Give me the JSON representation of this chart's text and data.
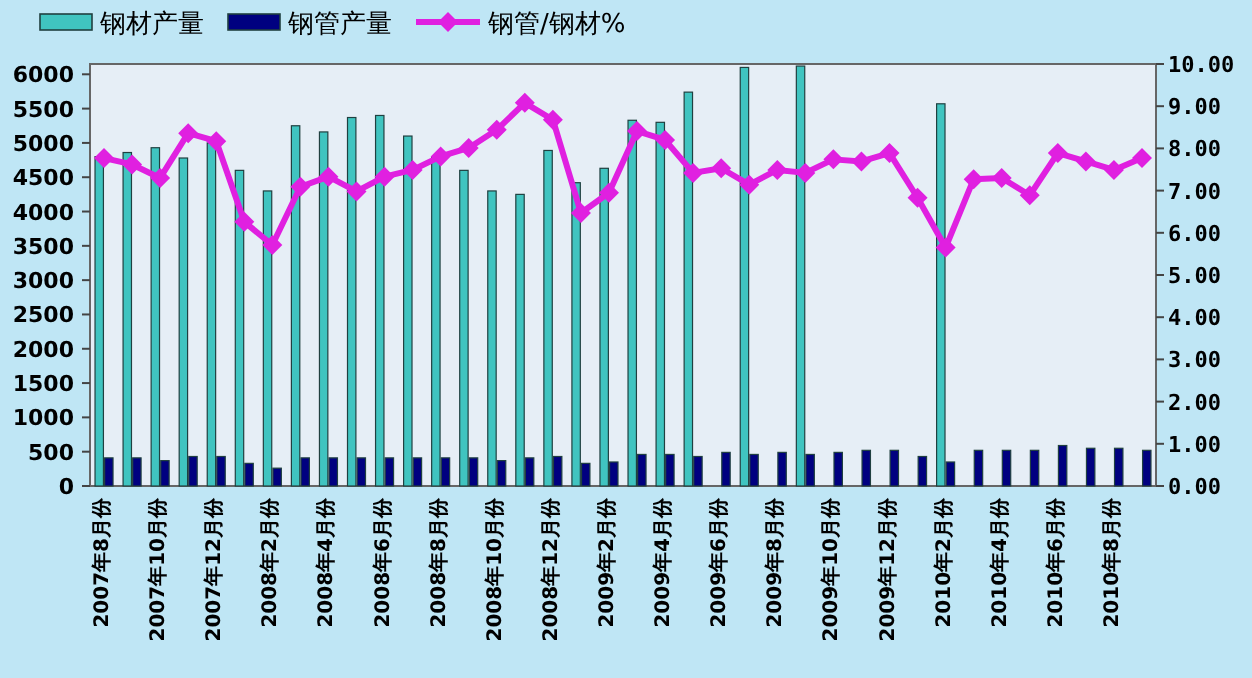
{
  "chart_data": {
    "type": "bar",
    "categories": [
      "2007年8月份",
      null,
      "2007年10月份",
      null,
      "2007年12月份",
      null,
      "2008年2月份",
      null,
      "2008年4月份",
      null,
      "2008年6月份",
      null,
      "2008年8月份",
      null,
      "2008年10月份",
      null,
      "2008年12月份",
      null,
      "2009年2月份",
      null,
      "2009年4月份",
      null,
      "2009年6月份",
      null,
      "2009年8月份",
      null,
      "2009年10月份",
      null,
      "2009年12月份",
      null,
      "2010年2月份",
      null,
      "2010年4月份",
      null,
      "2010年6月份",
      null,
      "2010年8月份",
      null
    ],
    "series": [
      {
        "name": "钢材产量",
        "color": "#40c4c0",
        "values": [
          4800,
          4860,
          4930,
          4780,
          5000,
          4600,
          4300,
          5250,
          5160,
          5370,
          5400,
          5100,
          4800,
          4600,
          4300,
          4250,
          4890,
          4420,
          4630,
          5330,
          5300,
          5740,
          null,
          6100,
          null,
          6120,
          null,
          null,
          null,
          null,
          5570,
          null,
          null,
          null,
          null,
          null,
          null,
          null
        ]
      },
      {
        "name": "钢管产量",
        "color": "#000080",
        "values": [
          410,
          410,
          370,
          430,
          430,
          330,
          260,
          410,
          410,
          410,
          410,
          410,
          410,
          410,
          370,
          410,
          430,
          330,
          350,
          460,
          460,
          430,
          490,
          460,
          490,
          460,
          490,
          520,
          520,
          430,
          350,
          520,
          520,
          520,
          590,
          550,
          550,
          520
        ]
      },
      {
        "name": "钢管/钢材%",
        "type": "line",
        "axis": "y2",
        "color": "#e020e0",
        "marker": "diamond",
        "values": [
          7.77,
          7.62,
          7.3,
          8.36,
          8.17,
          6.26,
          5.71,
          7.09,
          7.33,
          6.98,
          7.33,
          7.49,
          7.81,
          8.01,
          8.44,
          9.08,
          8.68,
          6.47,
          6.95,
          8.41,
          8.2,
          7.42,
          7.53,
          7.14,
          7.49,
          7.42,
          7.74,
          7.69,
          7.89,
          6.83,
          5.65,
          7.27,
          7.3,
          6.89,
          7.89,
          7.69,
          7.49,
          7.77
        ]
      }
    ],
    "ylim": [
      0,
      6150
    ],
    "yticks": [
      0,
      500,
      1000,
      1500,
      2000,
      2500,
      3000,
      3500,
      4000,
      4500,
      5000,
      5500,
      6000
    ],
    "y2lim": [
      0,
      10
    ],
    "y2ticks": [
      {
        "value": 0,
        "label": "0.00"
      },
      {
        "value": 1,
        "label": "1.00"
      },
      {
        "value": 2,
        "label": "2.00"
      },
      {
        "value": 3,
        "label": "3.00"
      },
      {
        "value": 4,
        "label": "4.00"
      },
      {
        "value": 5,
        "label": "5.00"
      },
      {
        "value": 6,
        "label": "6.00"
      },
      {
        "value": 7,
        "label": "7.00"
      },
      {
        "value": 8,
        "label": "8.00"
      },
      {
        "value": 9,
        "label": "9.00"
      },
      {
        "value": 10,
        "label": "10.00"
      }
    ],
    "legend": "top",
    "grid": false
  }
}
